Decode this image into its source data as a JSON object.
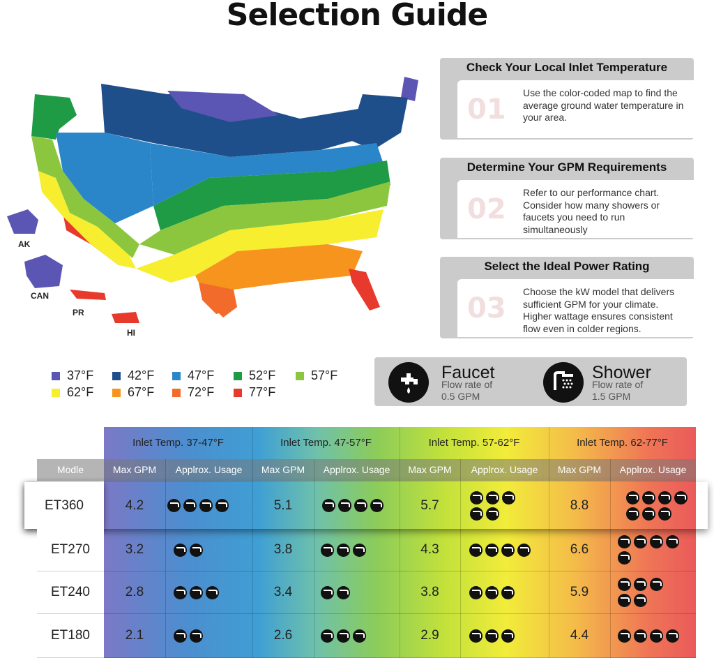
{
  "title": "Selection Guide",
  "map": {
    "labels": {
      "ak": "AK",
      "can": "CAN",
      "pr": "PR",
      "hi": "HI"
    },
    "colors": {
      "t37": "#5b55b4",
      "t42": "#1f4f8a",
      "t47": "#2a86c8",
      "t52": "#1f9a45",
      "t57": "#8cc63f",
      "t62": "#f7ee2f",
      "t67": "#f7941d",
      "t72": "#f26b2a",
      "t77": "#e8392d"
    }
  },
  "steps": [
    {
      "title": "Check Your Local Inlet Temperature",
      "number": "01",
      "text": "Use the color-coded map to find the average ground water temperature in your area."
    },
    {
      "title": "Determine Your GPM Requirements",
      "number": "02",
      "text": "Refer to our performance chart. Consider how many showers or faucets you need to run simultaneously"
    },
    {
      "title": "Select the Ideal Power Rating",
      "number": "03",
      "text": "Choose the kW model that delivers sufficient GPM for your climate. Higher wattage ensures consistent flow even in colder regions."
    }
  ],
  "legend": [
    {
      "label": "37°F",
      "color": "#5b55b4"
    },
    {
      "label": "42°F",
      "color": "#1f4f8a"
    },
    {
      "label": "47°F",
      "color": "#2a86c8"
    },
    {
      "label": "52°F",
      "color": "#1f9a45"
    },
    {
      "label": "57°F",
      "color": "#8cc63f"
    },
    {
      "label": "62°F",
      "color": "#f7ee2f"
    },
    {
      "label": "67°F",
      "color": "#f7941d"
    },
    {
      "label": "72°F",
      "color": "#f26b2a"
    },
    {
      "label": "77°F",
      "color": "#e8392d"
    }
  ],
  "flow": {
    "faucet": {
      "name": "Faucet",
      "line1": "Flow rate of",
      "line2": "0.5 GPM",
      "icon": "faucet-icon"
    },
    "shower": {
      "name": "Shower",
      "line1": "Flow rate of",
      "line2": "1.5 GPM",
      "icon": "shower-icon"
    }
  },
  "table": {
    "groups": [
      "Inlet Temp. 37-47°F",
      "Inlet Temp. 47-57°F",
      "Inlet Temp. 57-62°F",
      "Inlet Temp. 62-77°F"
    ],
    "model_header": "Modle",
    "gpm_header": "Max GPM",
    "usage_header": "Applrox. Usage",
    "rows": [
      {
        "model": "ET360",
        "gpm": [
          "4.2",
          "5.1",
          "5.7",
          "8.8"
        ],
        "usage": [
          4,
          4,
          5,
          7
        ]
      },
      {
        "model": "ET270",
        "gpm": [
          "3.2",
          "3.8",
          "4.3",
          "6.6"
        ],
        "usage": [
          2,
          3,
          4,
          5
        ]
      },
      {
        "model": "ET240",
        "gpm": [
          "2.8",
          "3.4",
          "3.8",
          "5.9"
        ],
        "usage": [
          3,
          2,
          3,
          5
        ]
      },
      {
        "model": "ET180",
        "gpm": [
          "2.1",
          "2.6",
          "2.9",
          "4.4"
        ],
        "usage": [
          2,
          3,
          3,
          4
        ]
      }
    ]
  }
}
